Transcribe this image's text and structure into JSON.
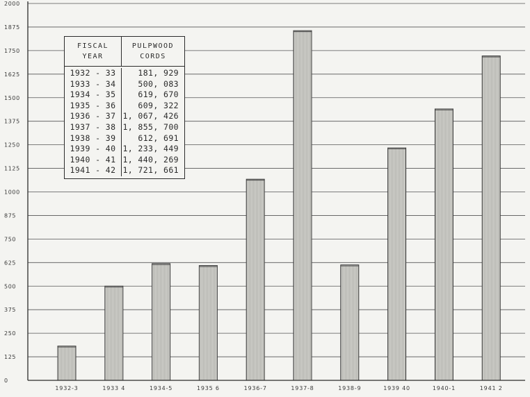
{
  "chart_data": {
    "type": "bar",
    "title": "",
    "xlabel": "",
    "ylabel": "",
    "categories": [
      "1932-3",
      "1933 4",
      "1934-5",
      "1935 6",
      "1936-7",
      "1937-8",
      "1938-9",
      "1939 40",
      "1940-1",
      "1941 2"
    ],
    "values": [
      181.929,
      500.083,
      619.67,
      609.322,
      1067.426,
      1855.7,
      612.691,
      1233.449,
      1440.269,
      1721.661
    ],
    "ylim": [
      0,
      2000
    ],
    "yticks": [
      0,
      125,
      250,
      375,
      500,
      625,
      750,
      875,
      1000,
      1125,
      1250,
      1375,
      1500,
      1625,
      1750,
      1875,
      2000
    ],
    "ytick_labels": [
      "0",
      "125",
      "250",
      "375",
      "500",
      "625",
      "750",
      "875",
      "1000",
      "1125",
      "1250",
      "1375",
      "1500",
      "1625",
      "1750",
      "1875",
      "2000"
    ],
    "grid": true,
    "bar_color": "#c9c9c4",
    "bar_edge_color": "#3a3a3a",
    "grid_color": "#555555"
  },
  "table": {
    "header_year_line1": "FISCAL",
    "header_year_line2": "YEAR",
    "header_cords_line1": "PULPWOOD",
    "header_cords_line2": "CORDS",
    "rows": [
      {
        "year": "1932 - 33",
        "cords": "181, 929"
      },
      {
        "year": "1933 - 34",
        "cords": "500, 083"
      },
      {
        "year": "1934 - 35",
        "cords": "619, 670"
      },
      {
        "year": "1935 - 36",
        "cords": "609, 322"
      },
      {
        "year": "1936 - 37",
        "cords": "1, 067, 426"
      },
      {
        "year": "1937 - 38",
        "cords": "1, 855, 700"
      },
      {
        "year": "1938 - 39",
        "cords": "612, 691"
      },
      {
        "year": "1939 - 40",
        "cords": "1, 233, 449"
      },
      {
        "year": "1940 - 41",
        "cords": "1, 440, 269"
      },
      {
        "year": "1941 - 42",
        "cords": "1, 721, 661"
      }
    ]
  }
}
